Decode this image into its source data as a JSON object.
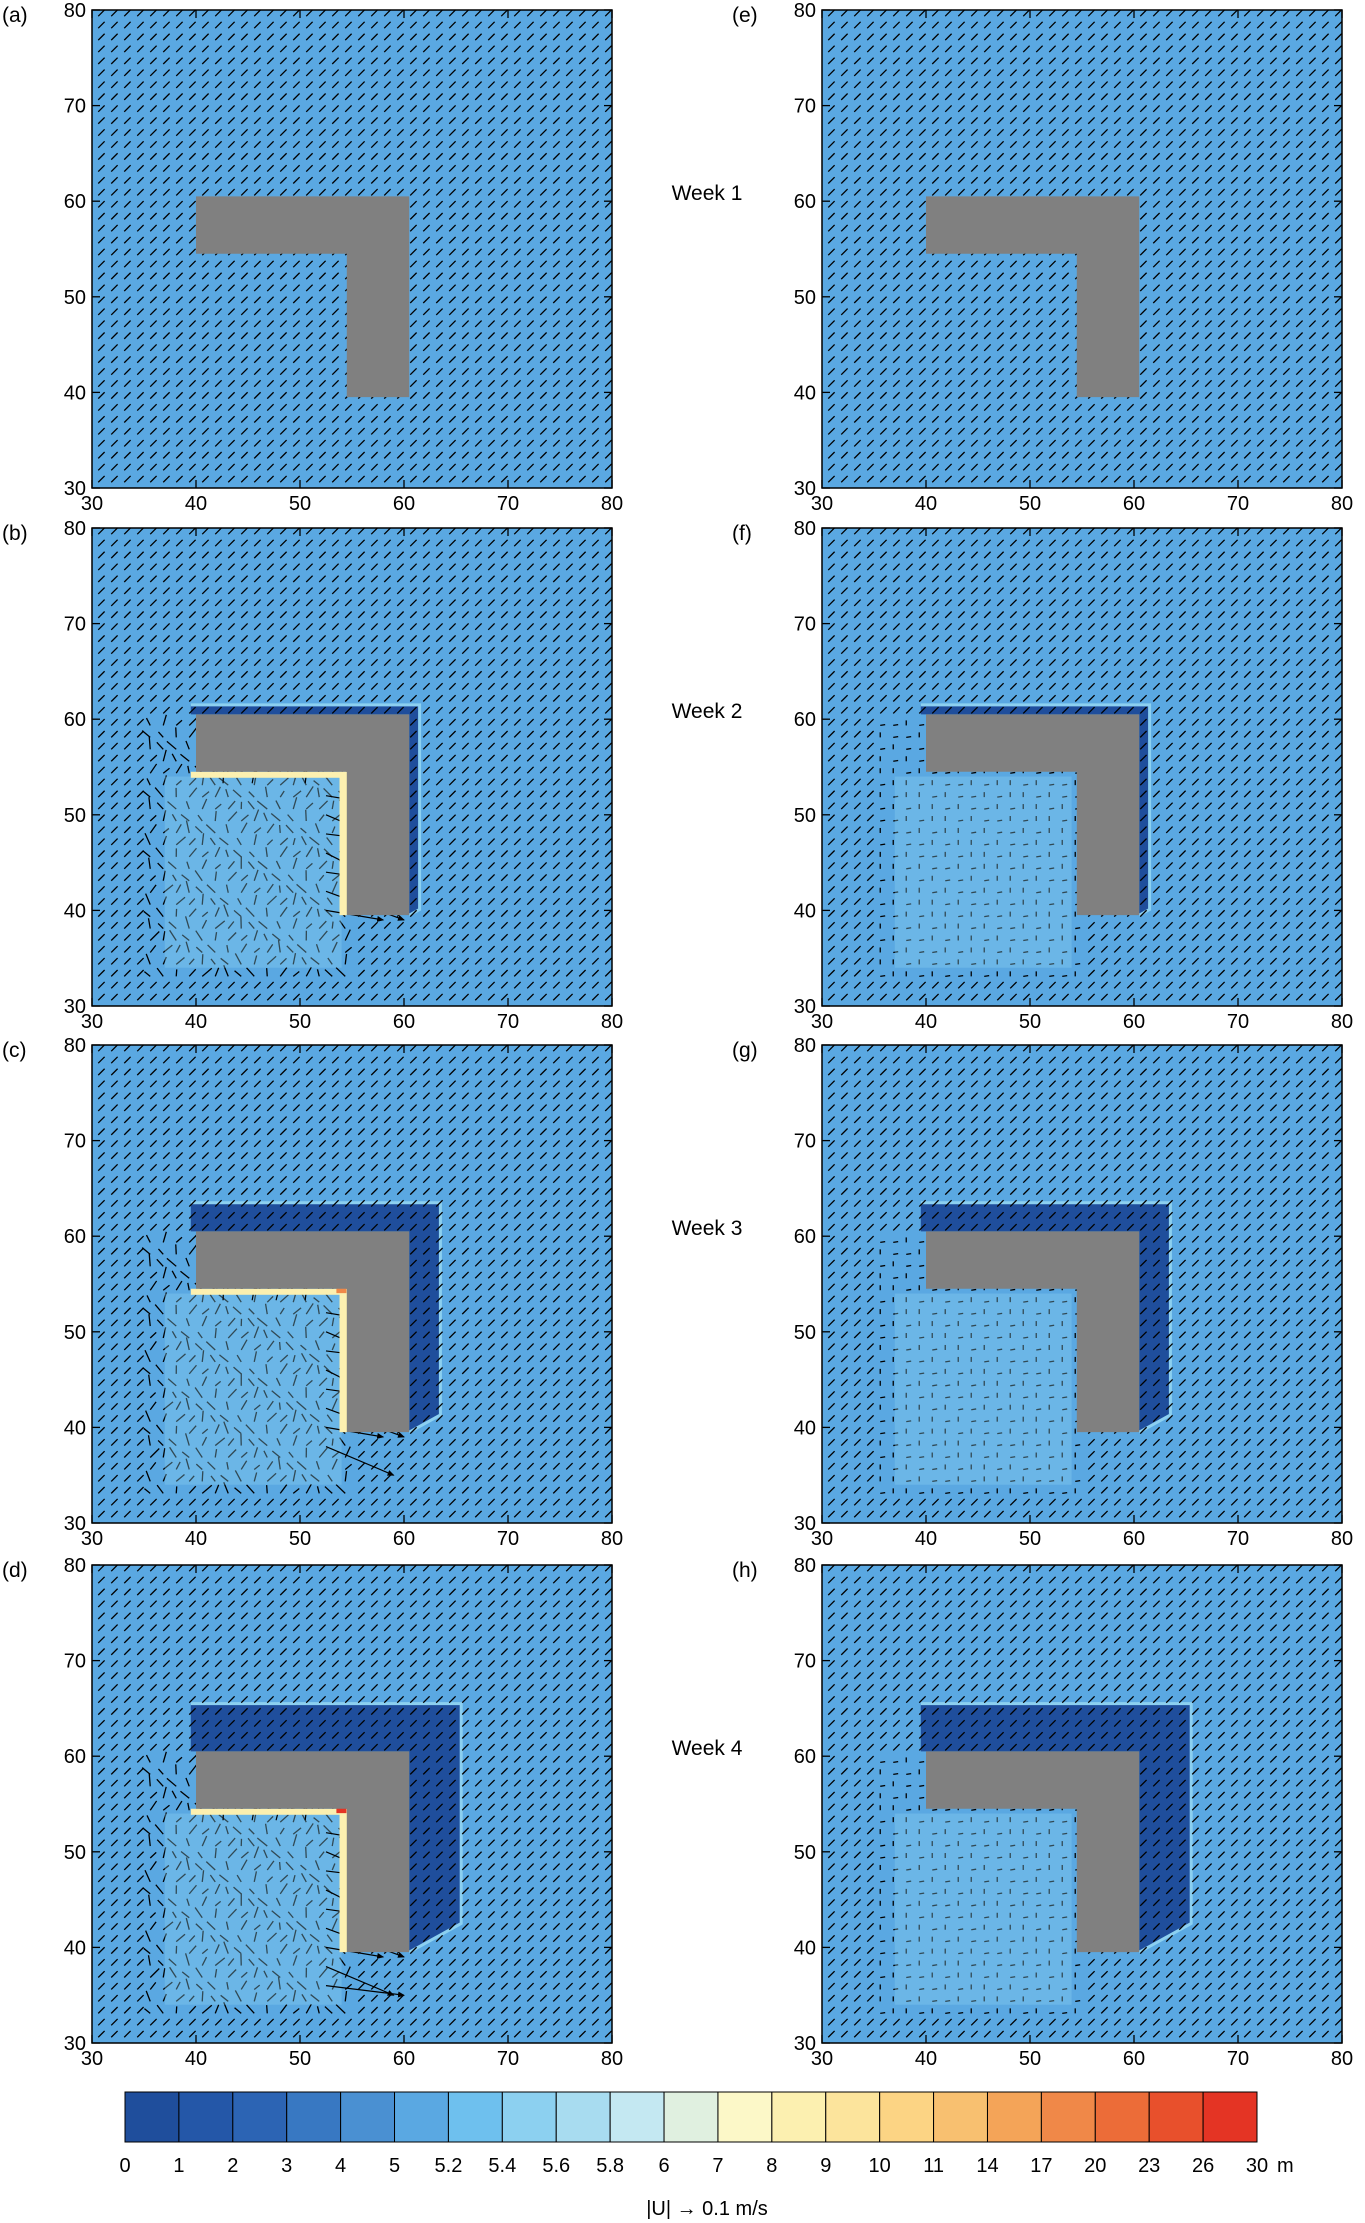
{
  "chart_data": {
    "type": "vector-field-heatmap",
    "axes": {
      "x_ticks": [
        30,
        40,
        50,
        60,
        70,
        80
      ],
      "y_ticks": [
        30,
        40,
        50,
        60,
        70,
        80
      ],
      "xlim": [
        30,
        80
      ],
      "ylim": [
        30,
        80
      ]
    },
    "obstacle": {
      "description_color": "#808080",
      "polygon": [
        [
          40,
          60.5
        ],
        [
          60.5,
          60.5
        ],
        [
          60.5,
          39.5
        ],
        [
          54.5,
          39.5
        ],
        [
          54.5,
          54.5
        ],
        [
          40,
          54.5
        ]
      ]
    },
    "panels": [
      {
        "letter": "(a)",
        "column": 0,
        "week": 1,
        "deposit_extent": 0
      },
      {
        "letter": "(b)",
        "column": 0,
        "week": 2,
        "deposit_extent": 1
      },
      {
        "letter": "(c)",
        "column": 0,
        "week": 3,
        "deposit_extent": 3
      },
      {
        "letter": "(d)",
        "column": 0,
        "week": 4,
        "deposit_extent": 5
      },
      {
        "letter": "(e)",
        "column": 1,
        "week": 1,
        "deposit_extent": 0
      },
      {
        "letter": "(f)",
        "column": 1,
        "week": 2,
        "deposit_extent": 1
      },
      {
        "letter": "(g)",
        "column": 1,
        "week": 3,
        "deposit_extent": 3
      },
      {
        "letter": "(h)",
        "column": 1,
        "week": 4,
        "deposit_extent": 5
      }
    ],
    "week_labels": [
      "Week 1",
      "Week 2",
      "Week 3",
      "Week 4"
    ],
    "colorbar": {
      "tick_labels": [
        "0",
        "1",
        "2",
        "3",
        "4",
        "5",
        "5.2",
        "5.4",
        "5.6",
        "5.8",
        "6",
        "7",
        "8",
        "9",
        "10",
        "11",
        "14",
        "17",
        "20",
        "23",
        "26",
        "30"
      ],
      "unit": "m",
      "colors": [
        "#1f4e9c",
        "#2457a8",
        "#2c64b4",
        "#3878c2",
        "#4a90d2",
        "#5aa8e2",
        "#6ec0ee",
        "#8cd0f0",
        "#a8dcf0",
        "#c4e8f2",
        "#e0f0e0",
        "#fcf8c8",
        "#fcf0b0",
        "#fce49c",
        "#fcd484",
        "#f8c070",
        "#f4a458",
        "#f08848",
        "#ec6c38",
        "#e8502c",
        "#e43424"
      ]
    },
    "vector_key": "|U| → 0.1 m/s",
    "colors": {
      "water": "#5aa8e2",
      "deep": "#1f4e9c",
      "obstacle": "#808080",
      "arrow": "#000000"
    }
  }
}
